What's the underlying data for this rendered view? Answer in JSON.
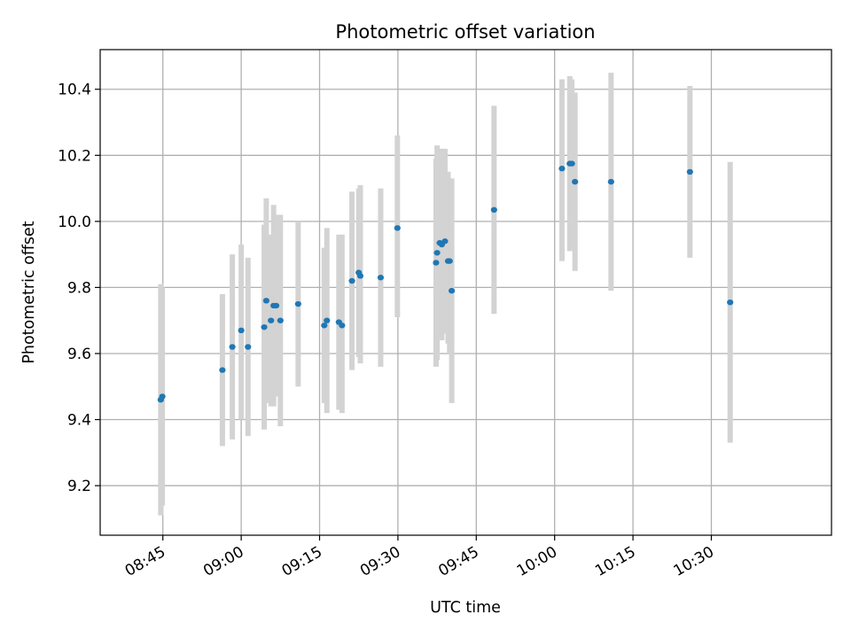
{
  "chart_data": {
    "type": "scatter",
    "title": "Photometric offset variation",
    "xlabel": "UTC time",
    "ylabel": "Photometric offset",
    "x_unit": "time (HH:MM UTC)",
    "xlim": [
      "08:33",
      "10:53"
    ],
    "ylim": [
      9.05,
      10.52
    ],
    "x_ticks": [
      "08:45",
      "09:00",
      "09:15",
      "09:30",
      "09:45",
      "10:00",
      "10:15",
      "10:30"
    ],
    "y_ticks": [
      9.2,
      9.4,
      9.6,
      9.8,
      10.0,
      10.2,
      10.4
    ],
    "grid": true,
    "marker_color": "#1f77b4",
    "errorbar_color": "#d3d3d3",
    "points": [
      {
        "t": "08:44:36",
        "y": 9.46,
        "lo": 9.11,
        "hi": 9.81
      },
      {
        "t": "08:44:54",
        "y": 9.47,
        "lo": 9.14,
        "hi": 9.8
      },
      {
        "t": "08:56:24",
        "y": 9.55,
        "lo": 9.32,
        "hi": 9.78
      },
      {
        "t": "08:58:18",
        "y": 9.62,
        "lo": 9.34,
        "hi": 9.9
      },
      {
        "t": "09:00:00",
        "y": 9.67,
        "lo": 9.4,
        "hi": 9.93
      },
      {
        "t": "09:01:18",
        "y": 9.62,
        "lo": 9.35,
        "hi": 9.89
      },
      {
        "t": "09:04:24",
        "y": 9.68,
        "lo": 9.37,
        "hi": 9.99
      },
      {
        "t": "09:04:48",
        "y": 9.76,
        "lo": 9.45,
        "hi": 10.07
      },
      {
        "t": "09:05:42",
        "y": 9.7,
        "lo": 9.44,
        "hi": 9.96
      },
      {
        "t": "09:06:12",
        "y": 9.745,
        "lo": 9.44,
        "hi": 10.05
      },
      {
        "t": "09:06:42",
        "y": 9.745,
        "lo": 9.47,
        "hi": 10.02
      },
      {
        "t": "09:07:30",
        "y": 9.7,
        "lo": 9.38,
        "hi": 10.02
      },
      {
        "t": "09:10:54",
        "y": 9.75,
        "lo": 9.5,
        "hi": 10.0
      },
      {
        "t": "09:15:54",
        "y": 9.685,
        "lo": 9.45,
        "hi": 9.92
      },
      {
        "t": "09:16:24",
        "y": 9.7,
        "lo": 9.42,
        "hi": 9.98
      },
      {
        "t": "09:18:42",
        "y": 9.695,
        "lo": 9.43,
        "hi": 9.96
      },
      {
        "t": "09:19:18",
        "y": 9.685,
        "lo": 9.42,
        "hi": 9.96
      },
      {
        "t": "09:21:12",
        "y": 9.82,
        "lo": 9.55,
        "hi": 10.09
      },
      {
        "t": "09:22:30",
        "y": 9.845,
        "lo": 9.59,
        "hi": 10.1
      },
      {
        "t": "09:22:48",
        "y": 9.835,
        "lo": 9.57,
        "hi": 10.11
      },
      {
        "t": "09:26:42",
        "y": 9.83,
        "lo": 9.56,
        "hi": 10.1
      },
      {
        "t": "09:29:54",
        "y": 9.98,
        "lo": 9.71,
        "hi": 10.26
      },
      {
        "t": "09:37:18",
        "y": 9.875,
        "lo": 9.56,
        "hi": 10.19
      },
      {
        "t": "09:37:30",
        "y": 9.905,
        "lo": 9.58,
        "hi": 10.23
      },
      {
        "t": "09:38:00",
        "y": 9.935,
        "lo": 9.65,
        "hi": 10.22
      },
      {
        "t": "09:38:24",
        "y": 9.93,
        "lo": 9.64,
        "hi": 10.22
      },
      {
        "t": "09:39:00",
        "y": 9.94,
        "lo": 9.66,
        "hi": 10.22
      },
      {
        "t": "09:39:36",
        "y": 9.88,
        "lo": 9.63,
        "hi": 10.15
      },
      {
        "t": "09:39:54",
        "y": 9.88,
        "lo": 9.6,
        "hi": 10.13
      },
      {
        "t": "09:40:18",
        "y": 9.79,
        "lo": 9.45,
        "hi": 10.13
      },
      {
        "t": "09:48:24",
        "y": 10.035,
        "lo": 9.72,
        "hi": 10.35
      },
      {
        "t": "10:01:24",
        "y": 10.16,
        "lo": 9.88,
        "hi": 10.43
      },
      {
        "t": "10:02:54",
        "y": 10.175,
        "lo": 9.91,
        "hi": 10.44
      },
      {
        "t": "10:03:18",
        "y": 10.175,
        "lo": 9.92,
        "hi": 10.43
      },
      {
        "t": "10:03:54",
        "y": 10.12,
        "lo": 9.85,
        "hi": 10.39
      },
      {
        "t": "10:10:48",
        "y": 10.12,
        "lo": 9.79,
        "hi": 10.45
      },
      {
        "t": "10:25:54",
        "y": 10.15,
        "lo": 9.89,
        "hi": 10.41
      },
      {
        "t": "10:33:36",
        "y": 9.755,
        "lo": 9.33,
        "hi": 10.18
      }
    ]
  }
}
